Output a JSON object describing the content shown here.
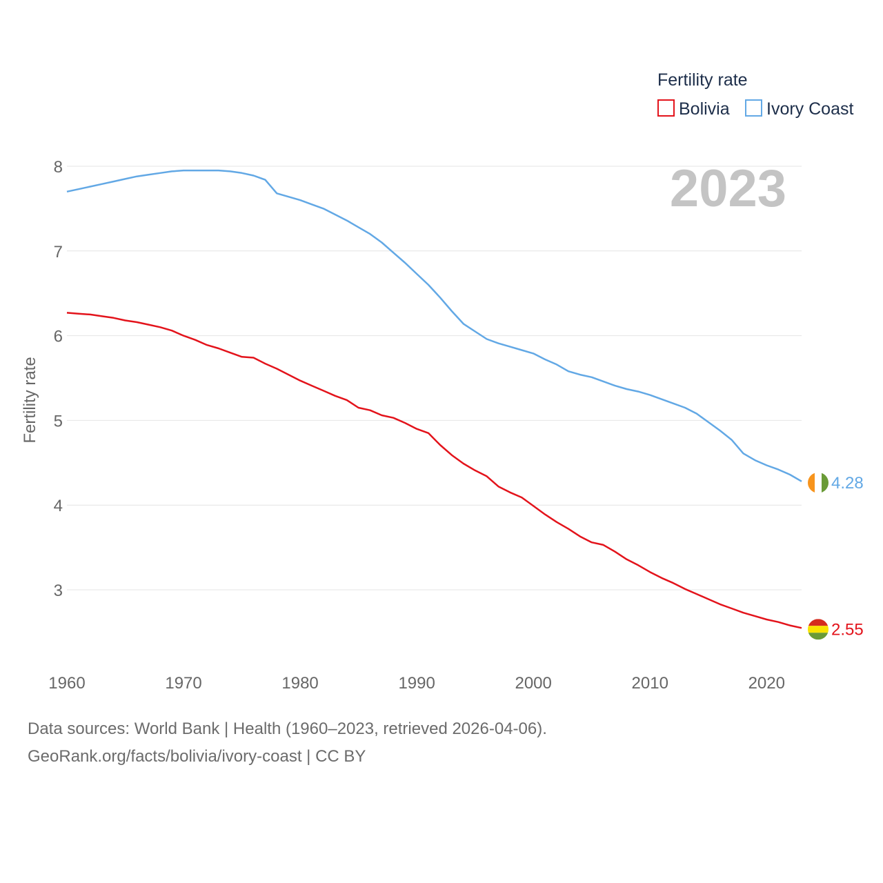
{
  "chart_data": {
    "type": "line",
    "watermark_year": "2023",
    "ylabel": "Fertility rate",
    "xlabel": "",
    "xlim": [
      1960,
      2023
    ],
    "ylim": [
      2.25,
      8.2
    ],
    "y_ticks": [
      3,
      4,
      5,
      6,
      7,
      8
    ],
    "x_ticks": [
      1960,
      1970,
      1980,
      1990,
      2000,
      2010,
      2020
    ],
    "grid": true,
    "legend": {
      "title": "Fertility rate",
      "position": "top-right",
      "entries": [
        "Bolivia",
        "Ivory Coast"
      ]
    },
    "x": [
      1960,
      1961,
      1962,
      1963,
      1964,
      1965,
      1966,
      1967,
      1968,
      1969,
      1970,
      1971,
      1972,
      1973,
      1974,
      1975,
      1976,
      1977,
      1978,
      1979,
      1980,
      1981,
      1982,
      1983,
      1984,
      1985,
      1986,
      1987,
      1988,
      1989,
      1990,
      1991,
      1992,
      1993,
      1994,
      1995,
      1996,
      1997,
      1998,
      1999,
      2000,
      2001,
      2002,
      2003,
      2004,
      2005,
      2006,
      2007,
      2008,
      2009,
      2010,
      2011,
      2012,
      2013,
      2014,
      2015,
      2016,
      2017,
      2018,
      2019,
      2020,
      2021,
      2022,
      2023
    ],
    "series": [
      {
        "name": "Bolivia",
        "color": "#e3131b",
        "end_label": "2.55",
        "flag": "bolivia-flag",
        "values": [
          6.27,
          6.26,
          6.25,
          6.23,
          6.21,
          6.18,
          6.16,
          6.13,
          6.1,
          6.06,
          6.0,
          5.95,
          5.89,
          5.85,
          5.8,
          5.75,
          5.74,
          5.67,
          5.61,
          5.54,
          5.47,
          5.41,
          5.35,
          5.29,
          5.24,
          5.15,
          5.12,
          5.06,
          5.03,
          4.97,
          4.9,
          4.85,
          4.71,
          4.59,
          4.49,
          4.41,
          4.34,
          4.22,
          4.15,
          4.09,
          3.99,
          3.89,
          3.8,
          3.72,
          3.63,
          3.56,
          3.53,
          3.45,
          3.36,
          3.29,
          3.21,
          3.14,
          3.08,
          3.01,
          2.95,
          2.89,
          2.83,
          2.78,
          2.73,
          2.69,
          2.65,
          2.62,
          2.58,
          2.55
        ]
      },
      {
        "name": "Ivory Coast",
        "color": "#62a8e5",
        "end_label": "4.28",
        "flag": "ivory-coast-flag",
        "values": [
          7.7,
          7.73,
          7.76,
          7.79,
          7.82,
          7.85,
          7.88,
          7.9,
          7.92,
          7.94,
          7.95,
          7.95,
          7.95,
          7.95,
          7.94,
          7.92,
          7.89,
          7.84,
          7.68,
          7.64,
          7.6,
          7.55,
          7.5,
          7.43,
          7.36,
          7.28,
          7.2,
          7.1,
          6.98,
          6.86,
          6.73,
          6.6,
          6.45,
          6.29,
          6.14,
          6.05,
          5.96,
          5.91,
          5.87,
          5.83,
          5.79,
          5.72,
          5.66,
          5.58,
          5.54,
          5.51,
          5.46,
          5.41,
          5.37,
          5.34,
          5.3,
          5.25,
          5.2,
          5.15,
          5.08,
          4.98,
          4.88,
          4.77,
          4.61,
          4.53,
          4.47,
          4.42,
          4.36,
          4.28
        ]
      }
    ]
  },
  "footer": {
    "line1": "Data sources: World Bank | Health (1960–2023, retrieved 2026-04-06).",
    "line2": "GeoRank.org/facts/bolivia/ivory-coast | CC BY"
  }
}
